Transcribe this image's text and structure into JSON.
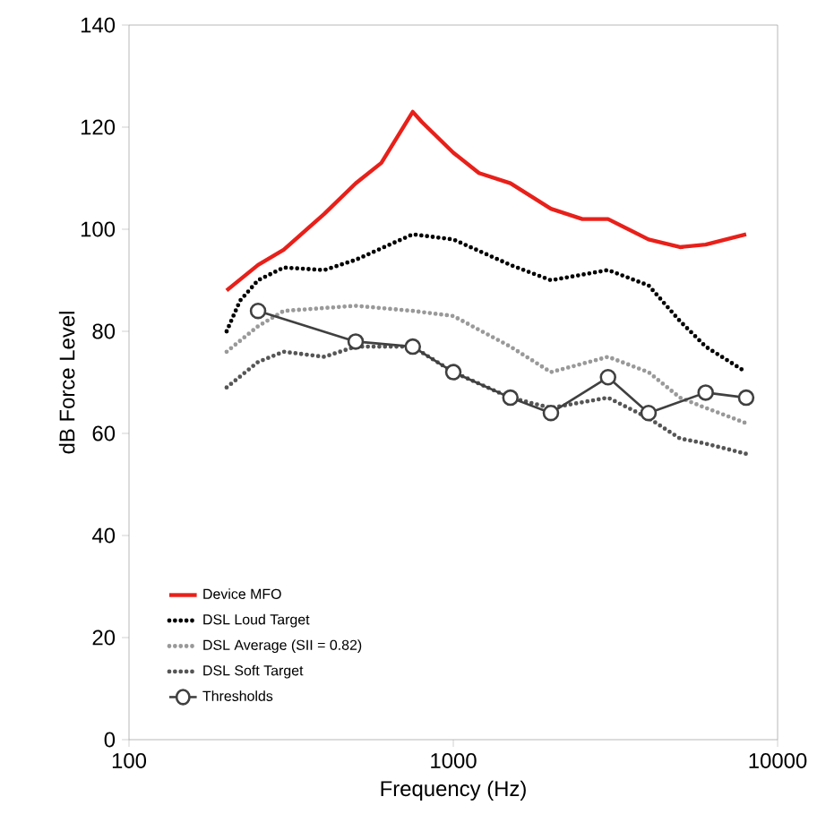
{
  "chart_data": {
    "type": "line",
    "xlabel": "Frequency (Hz)",
    "ylabel": "dB Force Level",
    "log": "x",
    "xlim": [
      100,
      10000
    ],
    "xticks": [
      100,
      1000,
      10000
    ],
    "ylim": [
      0,
      140
    ],
    "yticks": [
      0,
      20,
      40,
      60,
      80,
      100,
      120,
      140
    ],
    "legend": "bottom left",
    "grid": false,
    "series": [
      {
        "name": "Device MFO",
        "color": "#e8201a",
        "line_style": "solid",
        "marker": "none",
        "x": [
          200,
          250,
          300,
          400,
          500,
          600,
          750,
          800,
          1000,
          1200,
          1500,
          2000,
          2500,
          3000,
          4000,
          5000,
          6000,
          8000
        ],
        "values": [
          88,
          93,
          96,
          103,
          109,
          113,
          123,
          121,
          115,
          111,
          109,
          104,
          102,
          102,
          98,
          96.5,
          97,
          99
        ]
      },
      {
        "name": "DSL Loud Target",
        "color": "#000000",
        "line_style": "dotted",
        "marker": "none",
        "x": [
          200,
          220,
          250,
          300,
          400,
          500,
          750,
          1000,
          1500,
          2000,
          3000,
          4000,
          5000,
          6000,
          8000
        ],
        "values": [
          80,
          86,
          90,
          92.5,
          92,
          94,
          99,
          98,
          93,
          90,
          92,
          89,
          82,
          77,
          72
        ]
      },
      {
        "name": "DSL Average (SII = 0.82)",
        "color": "#999999",
        "line_style": "dotted",
        "marker": "none",
        "x": [
          200,
          250,
          300,
          500,
          750,
          1000,
          1500,
          2000,
          3000,
          4000,
          5000,
          6000,
          8000
        ],
        "values": [
          76,
          81,
          84,
          85,
          84,
          83,
          77,
          72,
          75,
          72,
          67,
          65,
          62
        ]
      },
      {
        "name": "DSL Soft Target",
        "color": "#555555",
        "line_style": "dotted",
        "marker": "none",
        "x": [
          200,
          250,
          300,
          400,
          500,
          750,
          1000,
          1500,
          2000,
          3000,
          4000,
          5000,
          6000,
          8000
        ],
        "values": [
          69,
          74,
          76,
          75,
          77,
          77,
          72,
          67,
          65,
          67,
          63,
          59,
          58,
          56
        ]
      },
      {
        "name": "Thresholds",
        "color": "#404040",
        "line_style": "solid",
        "marker": "circle",
        "x": [
          250,
          500,
          750,
          1000,
          1500,
          2000,
          3000,
          4000,
          6000,
          8000
        ],
        "values": [
          84,
          78,
          77,
          72,
          67,
          64,
          71,
          64,
          68,
          67
        ]
      }
    ]
  }
}
